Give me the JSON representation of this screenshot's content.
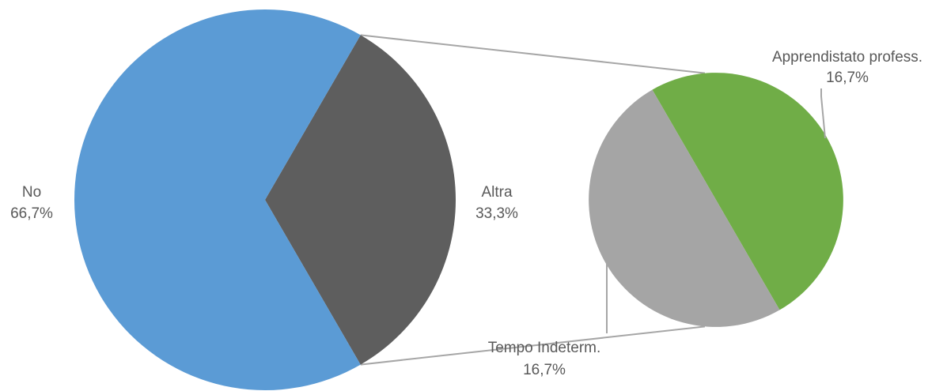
{
  "chart_data": {
    "type": "pie",
    "variant": "pie-of-pie",
    "title": "",
    "main": {
      "slices": [
        {
          "name": "No",
          "value": 66.7,
          "label": "66,7%",
          "color": "#5b9bd5"
        },
        {
          "name": "Altra",
          "value": 33.3,
          "label": "33,3%",
          "color": "#5e5e5e"
        }
      ]
    },
    "secondary": {
      "source": "Altra",
      "slices": [
        {
          "name": "Apprendistato profess.",
          "value": 16.7,
          "label": "16,7%",
          "color": "#70ad47"
        },
        {
          "name": "Tempo Indeterm.",
          "value": 16.7,
          "label": "16,7%",
          "color": "#a5a5a5"
        }
      ]
    },
    "legend": "none",
    "connector_color": "#a6a6a6"
  }
}
